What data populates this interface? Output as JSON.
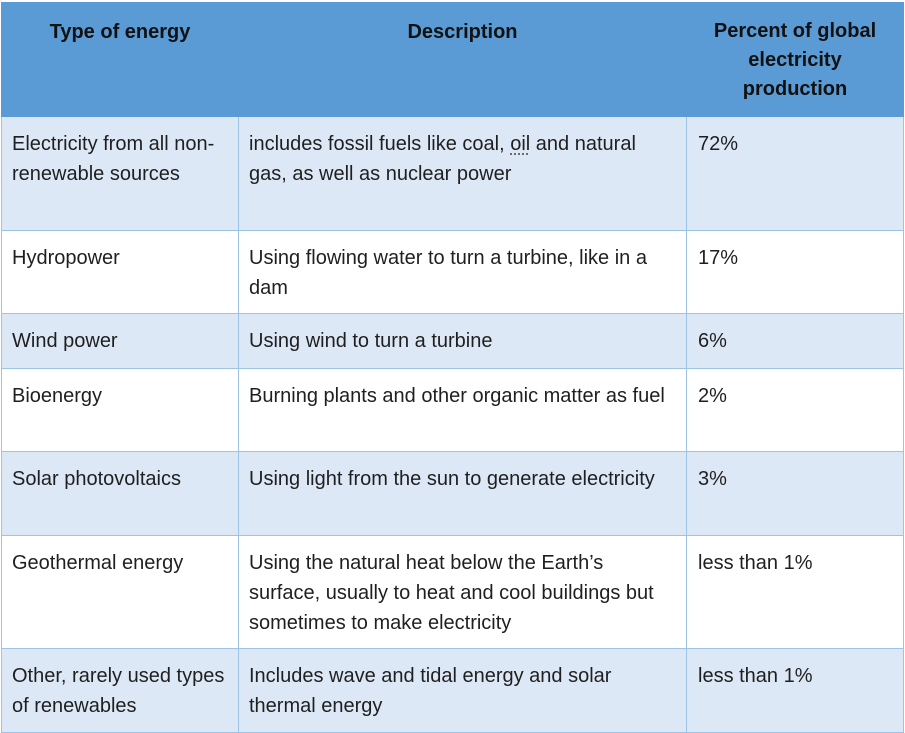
{
  "table": {
    "headers": {
      "type": "Type of energy",
      "description": "Description",
      "percent": "Percent of global electricity production"
    },
    "rows": [
      {
        "type": "Electricity from all non-renewable sources",
        "description_pre": "includes fossil fuels like coal, ",
        "description_flag": "oil",
        "description_post": " and natural gas, as well as nuclear power",
        "percent": "72%"
      },
      {
        "type": "Hydropower",
        "description": "Using flowing water to turn a turbine, like in a dam",
        "percent": "17%"
      },
      {
        "type": "Wind power",
        "description": "Using wind to turn a turbine",
        "percent": "6%"
      },
      {
        "type": "Bioenergy",
        "description": "Burning plants and other organic matter as fuel",
        "percent": "2%"
      },
      {
        "type": "Solar photovoltaics",
        "description": "Using light from the sun to generate electricity",
        "percent": "3%"
      },
      {
        "type": "Geothermal energy",
        "description": "Using the natural heat below the Earth’s surface, usually to heat and cool buildings but sometimes to make electricity",
        "percent": "less than 1%"
      },
      {
        "type": "Other, rarely used types of renewables",
        "description": "Includes wave and tidal energy and solar thermal energy",
        "percent": "less than 1%"
      }
    ],
    "colors": {
      "header_bg": "#5b9bd5",
      "band_bg": "#dde8f6",
      "border": "#9dc3e6"
    }
  }
}
